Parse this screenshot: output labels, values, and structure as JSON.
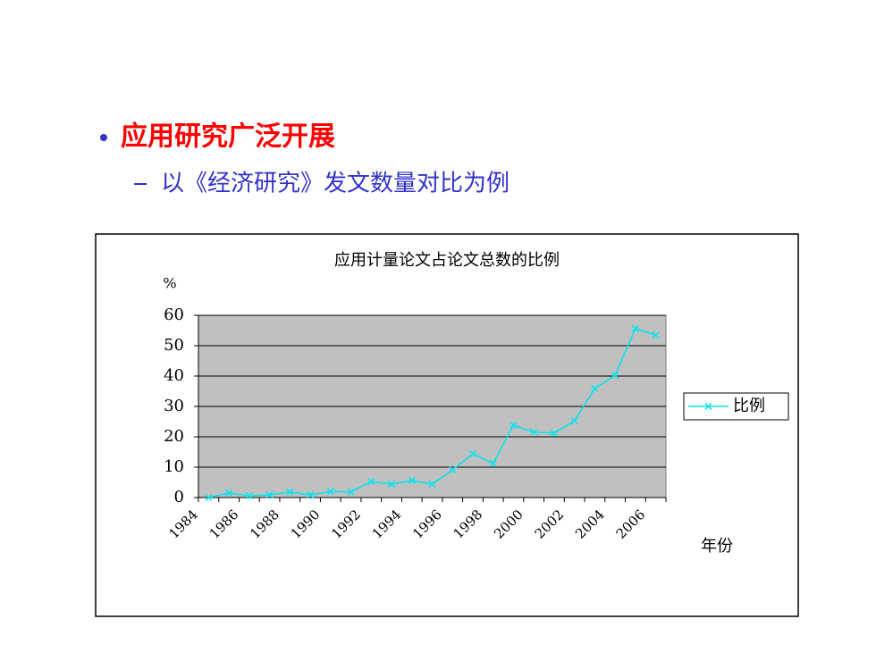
{
  "slide": {
    "bullet": "应用研究广泛开展",
    "sub_bullet": "以《经济研究》发文数量对比为例"
  },
  "chart_data": {
    "type": "line",
    "title": "应用计量论文占论文总数的比例",
    "y_label": "%",
    "x_label": "年份",
    "categories": [
      "1984",
      null,
      "1986",
      null,
      "1988",
      null,
      "1990",
      null,
      "1992",
      null,
      "1994",
      null,
      "1996",
      null,
      "1998",
      null,
      "2000",
      null,
      "2002",
      null,
      "2004",
      null,
      "2006"
    ],
    "series": [
      {
        "name": "比例",
        "color": "#00e5ee",
        "values": [
          0,
          1.5,
          0.6,
          0.9,
          1.8,
          0.9,
          2,
          1.8,
          5.3,
          4.4,
          5.6,
          4.4,
          9.1,
          14.4,
          11.2,
          23.8,
          21.5,
          21.2,
          25.3,
          35.9,
          40.3,
          55.6,
          53.5
        ]
      }
    ],
    "ylim": [
      0,
      60
    ],
    "yticks": [
      0,
      10,
      20,
      30,
      40,
      50,
      60
    ],
    "grid": true,
    "legend": "right"
  }
}
